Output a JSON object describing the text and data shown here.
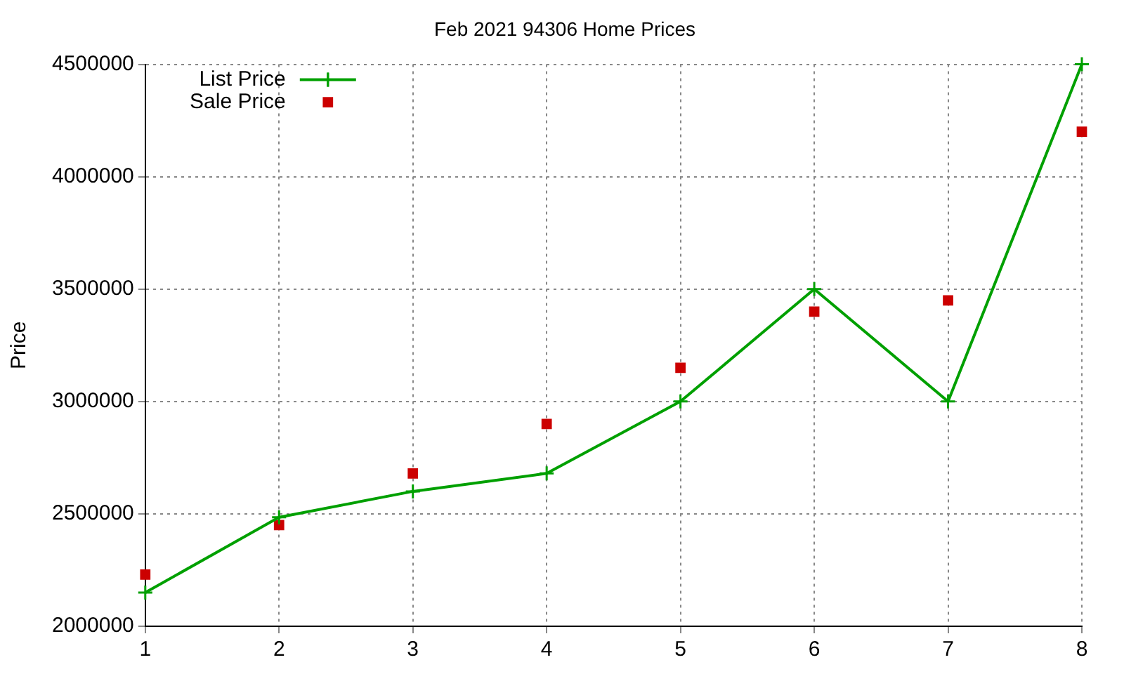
{
  "chart_data": {
    "type": "line",
    "title": "Feb 2021 94306 Home Prices",
    "ylabel": "Price",
    "x": [
      1,
      2,
      3,
      4,
      5,
      6,
      7,
      8
    ],
    "series": [
      {
        "name": "List Price",
        "type": "line",
        "color": "#00a000",
        "marker": "cross",
        "values": [
          2150000,
          2485000,
          2600000,
          2680000,
          3000000,
          3500000,
          3000000,
          4500000
        ]
      },
      {
        "name": "Sale Price",
        "type": "scatter",
        "color": "#cc0000",
        "marker": "square",
        "values": [
          2230000,
          2450000,
          2680000,
          2900000,
          3150000,
          3400000,
          3450000,
          4200000
        ]
      }
    ],
    "xlim": [
      1,
      8
    ],
    "xticks": [
      1,
      2,
      3,
      4,
      5,
      6,
      7,
      8
    ],
    "ylim": [
      2000000,
      4500000
    ],
    "yticks": [
      2000000,
      2500000,
      3000000,
      3500000,
      4000000,
      4500000
    ],
    "grid": true,
    "legend": "top left"
  }
}
